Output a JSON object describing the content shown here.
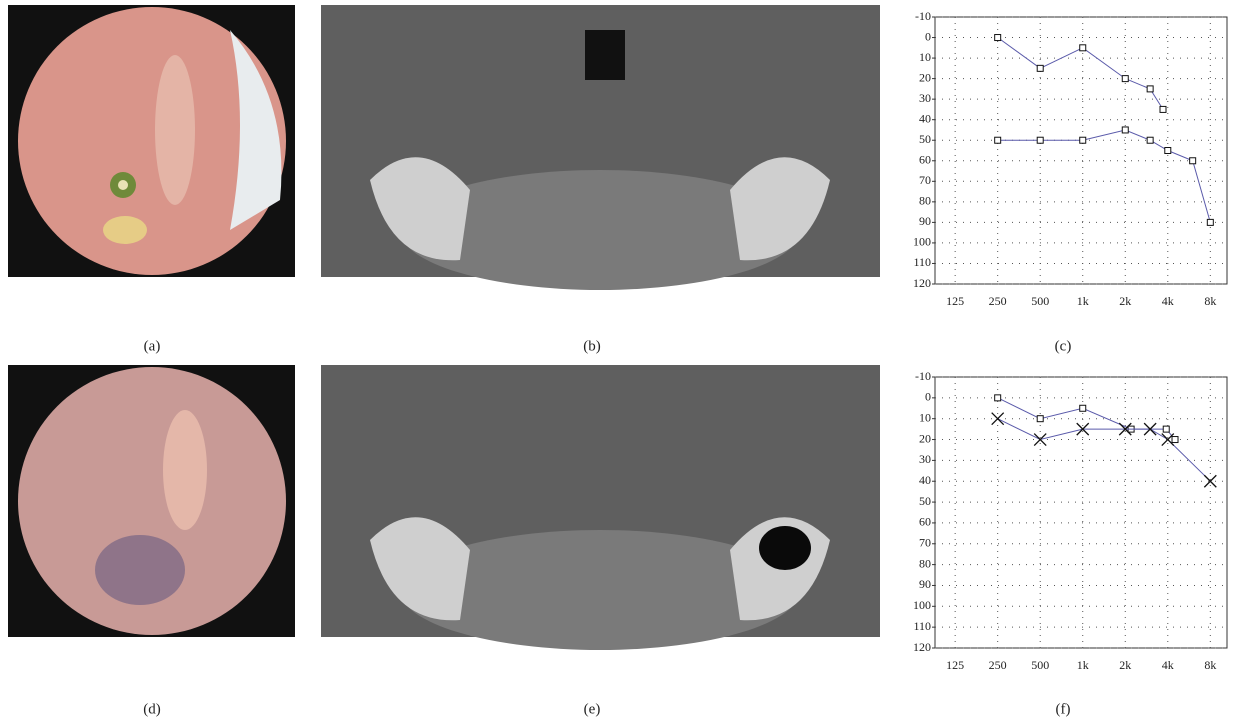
{
  "panels": [
    "(a)",
    "(b)",
    "(c)",
    "(d)",
    "(e)",
    "(f)"
  ],
  "chart_data": [
    {
      "type": "line",
      "xscale": "log",
      "y_inverted": true,
      "grid": true,
      "xlim": [
        90,
        10500
      ],
      "ylim": [
        -10,
        120
      ],
      "xticks": [
        125,
        250,
        500,
        {
          "value": 1000,
          "label": "1k"
        },
        {
          "value": 2000,
          "label": "2k"
        },
        {
          "value": 4000,
          "label": "4k"
        },
        {
          "value": 8000,
          "label": "8k"
        }
      ],
      "yticks": [
        -10,
        0,
        10,
        20,
        30,
        40,
        50,
        60,
        70,
        80,
        90,
        100,
        110,
        120
      ],
      "series": [
        {
          "color": "#5a5aaa",
          "marker": "square",
          "x": [
            250,
            500,
            1000,
            2000,
            3000,
            3700
          ],
          "values": [
            0,
            15,
            5,
            20,
            25,
            35
          ]
        },
        {
          "color": "#5a5aaa",
          "marker": "square",
          "x": [
            250,
            500,
            1000,
            2000,
            3000,
            4000,
            6000,
            8000
          ],
          "values": [
            50,
            50,
            50,
            45,
            50,
            55,
            60,
            90
          ]
        }
      ]
    },
    {
      "type": "line",
      "xscale": "log",
      "y_inverted": true,
      "grid": true,
      "xlim": [
        90,
        10500
      ],
      "ylim": [
        -10,
        120
      ],
      "xticks": [
        125,
        250,
        500,
        {
          "value": 1000,
          "label": "1k"
        },
        {
          "value": 2000,
          "label": "2k"
        },
        {
          "value": 4000,
          "label": "4k"
        },
        {
          "value": 8000,
          "label": "8k"
        }
      ],
      "yticks": [
        -10,
        0,
        10,
        20,
        30,
        40,
        50,
        60,
        70,
        80,
        90,
        100,
        110,
        120
      ],
      "series": [
        {
          "color": "#5a5aaa",
          "marker": "square",
          "x": [
            250,
            500,
            1000,
            2200,
            3900,
            4500
          ],
          "values": [
            0,
            10,
            5,
            15,
            15,
            20
          ]
        },
        {
          "color": "#5a5aaa",
          "marker": "cross",
          "x": [
            250,
            500,
            1000,
            2000,
            3000,
            4000,
            8000
          ],
          "values": [
            10,
            20,
            15,
            15,
            15,
            20,
            40
          ]
        }
      ]
    }
  ]
}
